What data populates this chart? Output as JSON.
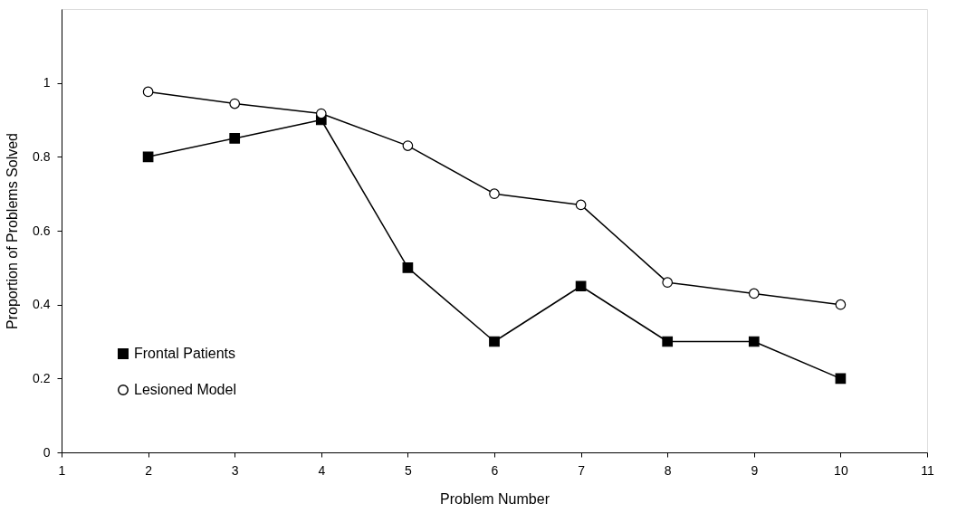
{
  "chart_data": {
    "type": "line",
    "xlabel": "Problem Number",
    "ylabel": "Proportion of Problems Solved",
    "x": [
      2,
      3,
      4,
      5,
      6,
      7,
      8,
      9,
      10
    ],
    "series": [
      {
        "name": "Frontal Patients",
        "color": "#000000",
        "marker": "square",
        "values": [
          0.8,
          0.85,
          0.9,
          0.5,
          0.3,
          0.45,
          0.3,
          0.3,
          0.2
        ]
      },
      {
        "name": "Lesioned Model",
        "color": "#000000",
        "marker": "circle",
        "values": [
          0.976,
          0.944,
          0.917,
          0.83,
          0.7,
          0.67,
          0.46,
          0.43,
          0.4
        ]
      }
    ],
    "xlim": [
      1,
      11
    ],
    "xticks": [
      1,
      2,
      3,
      4,
      5,
      6,
      7,
      8,
      9,
      10,
      11
    ],
    "ylim": [
      0,
      1.2
    ],
    "yticks": [
      0,
      0.2,
      0.4,
      0.6,
      0.8,
      1
    ],
    "grid": false,
    "legend": "bottom left",
    "line_style": "solid"
  }
}
